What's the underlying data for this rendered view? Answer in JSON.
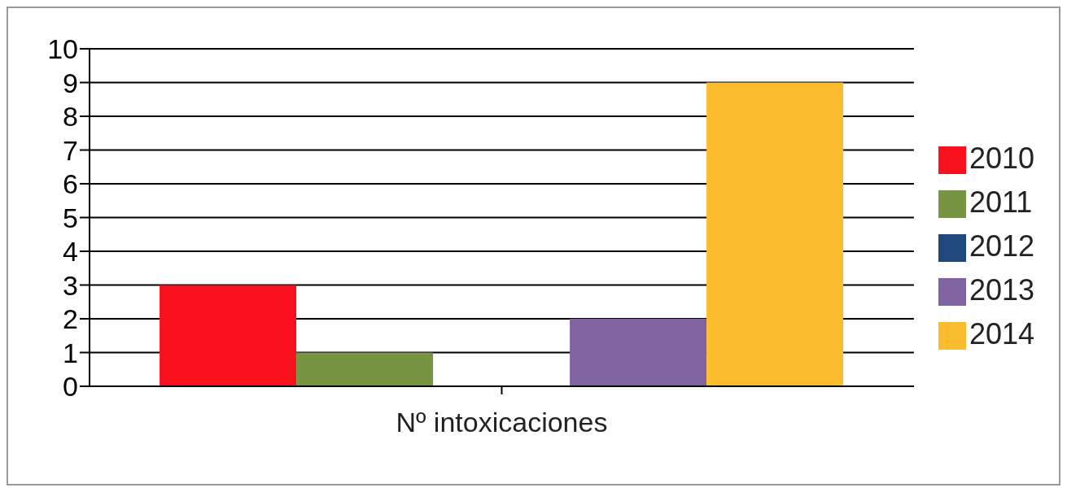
{
  "chart_data": {
    "type": "bar",
    "categories": [
      "Nº intoxicaciones"
    ],
    "series": [
      {
        "name": "2010",
        "color": "#f8101c",
        "values": [
          3
        ]
      },
      {
        "name": "2011",
        "color": "#779443",
        "values": [
          1
        ]
      },
      {
        "name": "2012",
        "color": "#1f497d",
        "values": [
          0
        ]
      },
      {
        "name": "2013",
        "color": "#8064a2",
        "values": [
          2
        ]
      },
      {
        "name": "2014",
        "color": "#fbbd2e",
        "values": [
          9
        ]
      }
    ],
    "ylim": [
      0,
      10
    ],
    "yticks": [
      0,
      1,
      2,
      3,
      4,
      5,
      6,
      7,
      8,
      9,
      10
    ],
    "grid": "y",
    "legend": "right"
  }
}
